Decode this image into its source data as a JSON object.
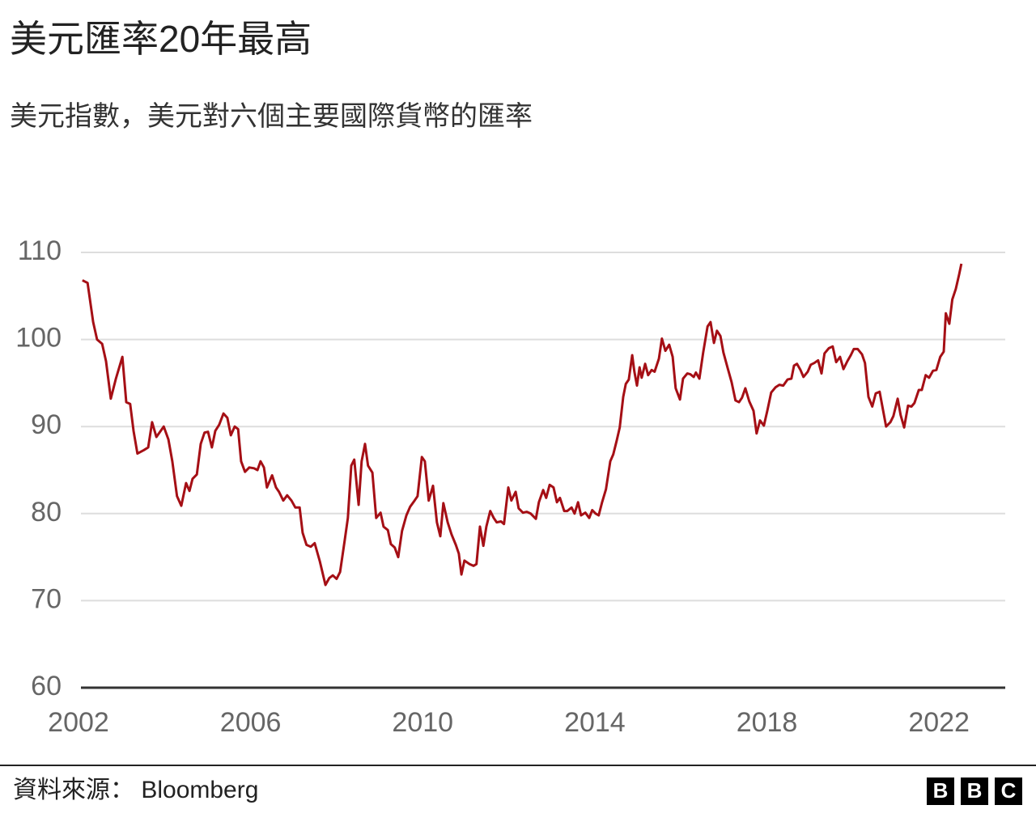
{
  "chart_data": {
    "type": "line",
    "title": "美元匯率20年最高",
    "subtitle": "美元指數，美元對六個主要國際貨幣的匯率",
    "source": "資料來源： Bloomberg",
    "logo": [
      "B",
      "B",
      "C"
    ],
    "xlim": [
      2002,
      2023.54
    ],
    "xticks": [
      2002,
      2006,
      2010,
      2014,
      2018,
      2022
    ],
    "ylim": [
      60,
      110
    ],
    "yticks": [
      60,
      70,
      80,
      90,
      100,
      110
    ],
    "grid": true,
    "series": [
      {
        "color": "#a50f15",
        "x": [
          2002.09,
          2002.21,
          2002.34,
          2002.43,
          2002.55,
          2002.64,
          2002.75,
          2002.87,
          2003.02,
          2003.11,
          2003.2,
          2003.28,
          2003.37,
          2003.52,
          2003.62,
          2003.71,
          2003.81,
          2003.98,
          2004.09,
          2004.18,
          2004.29,
          2004.39,
          2004.5,
          2004.58,
          2004.65,
          2004.75,
          2004.84,
          2004.93,
          2005.01,
          2005.1,
          2005.18,
          2005.27,
          2005.37,
          2005.46,
          2005.54,
          2005.63,
          2005.71,
          2005.78,
          2005.87,
          2005.97,
          2006.08,
          2006.16,
          2006.23,
          2006.31,
          2006.38,
          2006.5,
          2006.59,
          2006.66,
          2006.76,
          2006.85,
          2006.95,
          2007.04,
          2007.14,
          2007.21,
          2007.3,
          2007.4,
          2007.49,
          2007.61,
          2007.74,
          2007.83,
          2007.91,
          2008,
          2008.08,
          2008.19,
          2008.26,
          2008.34,
          2008.41,
          2008.51,
          2008.58,
          2008.66,
          2008.73,
          2008.83,
          2008.92,
          2009.02,
          2009.09,
          2009.19,
          2009.26,
          2009.35,
          2009.43,
          2009.52,
          2009.62,
          2009.71,
          2009.81,
          2009.88,
          2009.98,
          2010.05,
          2010.14,
          2010.24,
          2010.33,
          2010.41,
          2010.48,
          2010.58,
          2010.67,
          2010.77,
          2010.84,
          2010.9,
          2010.97,
          2011.09,
          2011.18,
          2011.25,
          2011.33,
          2011.41,
          2011.48,
          2011.57,
          2011.65,
          2011.72,
          2011.82,
          2011.89,
          2011.99,
          2012.06,
          2012.16,
          2012.23,
          2012.33,
          2012.42,
          2012.51,
          2012.63,
          2012.7,
          2012.8,
          2012.87,
          2012.95,
          2013.04,
          2013.12,
          2013.19,
          2013.29,
          2013.36,
          2013.46,
          2013.53,
          2013.61,
          2013.68,
          2013.78,
          2013.87,
          2013.94,
          2014.02,
          2014.09,
          2014.17,
          2014.26,
          2014.36,
          2014.43,
          2014.51,
          2014.58,
          2014.66,
          2014.72,
          2014.79,
          2014.87,
          2014.92,
          2014.98,
          2015.04,
          2015.09,
          2015.17,
          2015.24,
          2015.32,
          2015.39,
          2015.49,
          2015.56,
          2015.64,
          2015.73,
          2015.81,
          2015.88,
          2015.98,
          2016.05,
          2016.15,
          2016.22,
          2016.3,
          2016.35,
          2016.43,
          2016.52,
          2016.62,
          2016.69,
          2016.77,
          2016.84,
          2016.92,
          2016.99,
          2017.09,
          2017.18,
          2017.27,
          2017.35,
          2017.42,
          2017.5,
          2017.59,
          2017.69,
          2017.76,
          2017.84,
          2017.93,
          2018.01,
          2018.1,
          2018.2,
          2018.29,
          2018.38,
          2018.48,
          2018.57,
          2018.63,
          2018.7,
          2018.78,
          2018.85,
          2018.95,
          2019.02,
          2019.1,
          2019.19,
          2019.27,
          2019.34,
          2019.44,
          2019.53,
          2019.61,
          2019.7,
          2019.78,
          2019.87,
          2019.95,
          2020.02,
          2020.11,
          2020.21,
          2020.28,
          2020.36,
          2020.45,
          2020.53,
          2020.62,
          2020.7,
          2020.77,
          2020.87,
          2020.94,
          2021.04,
          2021.11,
          2021.19,
          2021.28,
          2021.36,
          2021.43,
          2021.53,
          2021.6,
          2021.69,
          2021.77,
          2021.86,
          2021.94,
          2022.03,
          2022.11,
          2022.16,
          2022.24,
          2022.31,
          2022.39,
          2022.47,
          2022.52
        ],
        "values": [
          106.8,
          106.5,
          102,
          100,
          99.5,
          97.5,
          93.2,
          95.5,
          98,
          92.8,
          92.6,
          89.5,
          86.9,
          87.3,
          87.6,
          90.5,
          88.8,
          90,
          88.5,
          86,
          82,
          80.9,
          83.5,
          82.6,
          84,
          84.5,
          88,
          89.3,
          89.4,
          87.6,
          89.5,
          90.2,
          91.5,
          91,
          89,
          90,
          89.7,
          86,
          84.8,
          85.3,
          85.2,
          85,
          86,
          85.3,
          83,
          84.4,
          83,
          82.5,
          81.5,
          82.1,
          81.5,
          80.7,
          80.7,
          77.8,
          76.4,
          76.2,
          76.6,
          74.5,
          71.8,
          72.6,
          72.9,
          72.5,
          73.3,
          77,
          79.5,
          85.5,
          86.2,
          81,
          86,
          88,
          85.5,
          84.7,
          79.5,
          80.1,
          78.5,
          78.1,
          76.5,
          76.1,
          75,
          78,
          79.8,
          80.8,
          81.5,
          82,
          86.5,
          86,
          81.5,
          83.2,
          79,
          77.4,
          81.2,
          79,
          77.6,
          76.4,
          75.4,
          73,
          74.6,
          74.2,
          74,
          74.2,
          78.5,
          76.3,
          78.5,
          80.3,
          79.5,
          79,
          79.1,
          78.8,
          83,
          81.5,
          82.5,
          80.6,
          80.1,
          80.2,
          80,
          79.4,
          81.3,
          82.7,
          81.8,
          83.3,
          83,
          81.3,
          81.8,
          80.3,
          80.3,
          80.7,
          80,
          81.3,
          79.8,
          80.1,
          79.5,
          80.4,
          80,
          79.8,
          81.3,
          82.8,
          86,
          86.8,
          88.4,
          89.9,
          93.4,
          94.9,
          95.4,
          98.2,
          96.3,
          94.7,
          96.8,
          95.6,
          97.2,
          95.9,
          96.5,
          96.3,
          97.8,
          100.1,
          98.7,
          99.4,
          98,
          94.4,
          93.1,
          95.5,
          96.1,
          96,
          95.7,
          96.2,
          95.5,
          98.5,
          101.5,
          102,
          99.6,
          101,
          100.4,
          98.5,
          96.7,
          95.1,
          93,
          92.8,
          93.3,
          94.4,
          92.9,
          91.8,
          89.2,
          90.7,
          90.1,
          91.8,
          93.9,
          94.5,
          94.8,
          94.7,
          95.4,
          95.5,
          97,
          97.2,
          96.5,
          95.7,
          96.3,
          97.1,
          97.3,
          97.6,
          96.1,
          98.4,
          99,
          99.2,
          97.4,
          98,
          96.6,
          97.5,
          98.2,
          98.9,
          98.9,
          98.3,
          97.3,
          93.4,
          92.3,
          93.8,
          94,
          91.9,
          90,
          90.5,
          91.2,
          93.2,
          91.3,
          89.9,
          92.4,
          92.3,
          92.7,
          94.2,
          94.2,
          95.9,
          95.6,
          96.4,
          96.5,
          98,
          98.6,
          103,
          101.8,
          104.6,
          105.8,
          107.5,
          108.7
        ]
      }
    ]
  }
}
